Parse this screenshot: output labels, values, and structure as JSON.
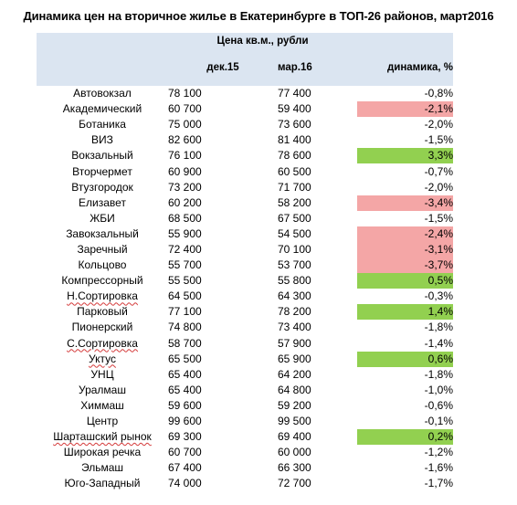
{
  "title": "Динамика цен на вторичное жилье в Екатеринбурге в ТОП-26 районов, март2016",
  "header": {
    "price_group": "Цена кв.м., рубли",
    "dec": "дек.15",
    "mar": "мар.16",
    "dynamics": "динамика, %"
  },
  "colors": {
    "header_bg": "#dbe5f1",
    "negative": "#f4a6a6",
    "positive": "#92d050"
  },
  "rows": [
    {
      "district": "Автовокзал",
      "dec": "78 100",
      "mar": "77 400",
      "dyn": "-0,8%",
      "hl": ""
    },
    {
      "district": "Академический",
      "dec": "60 700",
      "mar": "59 400",
      "dyn": "-2,1%",
      "hl": "neg"
    },
    {
      "district": "Ботаника",
      "dec": "75 000",
      "mar": "73 600",
      "dyn": "-2,0%",
      "hl": ""
    },
    {
      "district": "ВИЗ",
      "dec": "82 600",
      "mar": "81 400",
      "dyn": "-1,5%",
      "hl": ""
    },
    {
      "district": "Вокзальный",
      "dec": "76 100",
      "mar": "78 600",
      "dyn": "3,3%",
      "hl": "pos"
    },
    {
      "district": "Вторчермет",
      "dec": "60 900",
      "mar": "60 500",
      "dyn": "-0,7%",
      "hl": ""
    },
    {
      "district": "Втузгородок",
      "dec": "73 200",
      "mar": "71 700",
      "dyn": "-2,0%",
      "hl": ""
    },
    {
      "district": "Елизавет",
      "dec": "60 200",
      "mar": "58 200",
      "dyn": "-3,4%",
      "hl": "neg"
    },
    {
      "district": "ЖБИ",
      "dec": "68 500",
      "mar": "67 500",
      "dyn": "-1,5%",
      "hl": ""
    },
    {
      "district": "Завокзальный",
      "dec": "55 900",
      "mar": "54 500",
      "dyn": "-2,4%",
      "hl": "neg"
    },
    {
      "district": "Заречный",
      "dec": "72 400",
      "mar": "70 100",
      "dyn": "-3,1%",
      "hl": "neg"
    },
    {
      "district": "Кольцово",
      "dec": "55 700",
      "mar": "53 700",
      "dyn": "-3,7%",
      "hl": "neg"
    },
    {
      "district": "Компрессорный",
      "dec": "55 500",
      "mar": "55 800",
      "dyn": "0,5%",
      "hl": "pos"
    },
    {
      "district": "Н.Сортировка",
      "dec": "64 500",
      "mar": "64 300",
      "dyn": "-0,3%",
      "hl": "",
      "squiggle": true
    },
    {
      "district": "Парковый",
      "dec": "77 100",
      "mar": "78 200",
      "dyn": "1,4%",
      "hl": "pos"
    },
    {
      "district": "Пионерский",
      "dec": "74 800",
      "mar": "73 400",
      "dyn": "-1,8%",
      "hl": ""
    },
    {
      "district": "С.Сортировка",
      "dec": "58 700",
      "mar": "57 900",
      "dyn": "-1,4%",
      "hl": "",
      "squiggle": true
    },
    {
      "district": "Уктус",
      "dec": "65 500",
      "mar": "65 900",
      "dyn": "0,6%",
      "hl": "pos",
      "squiggle": true
    },
    {
      "district": "УНЦ",
      "dec": "65 400",
      "mar": "64 200",
      "dyn": "-1,8%",
      "hl": ""
    },
    {
      "district": "Уралмаш",
      "dec": "65 400",
      "mar": "64 800",
      "dyn": "-1,0%",
      "hl": ""
    },
    {
      "district": "Химмаш",
      "dec": "59 600",
      "mar": "59 200",
      "dyn": "-0,6%",
      "hl": ""
    },
    {
      "district": "Центр",
      "dec": "99 600",
      "mar": "99 500",
      "dyn": "-0,1%",
      "hl": ""
    },
    {
      "district": "Шарташский рынок",
      "dec": "69 300",
      "mar": "69 400",
      "dyn": "0,2%",
      "hl": "pos",
      "squiggle": true
    },
    {
      "district": "Широкая речка",
      "dec": "60 700",
      "mar": "60 000",
      "dyn": "-1,2%",
      "hl": ""
    },
    {
      "district": "Эльмаш",
      "dec": "67 400",
      "mar": "66 300",
      "dyn": "-1,6%",
      "hl": ""
    },
    {
      "district": "Юго-Западный",
      "dec": "74 000",
      "mar": "72 700",
      "dyn": "-1,7%",
      "hl": ""
    }
  ]
}
